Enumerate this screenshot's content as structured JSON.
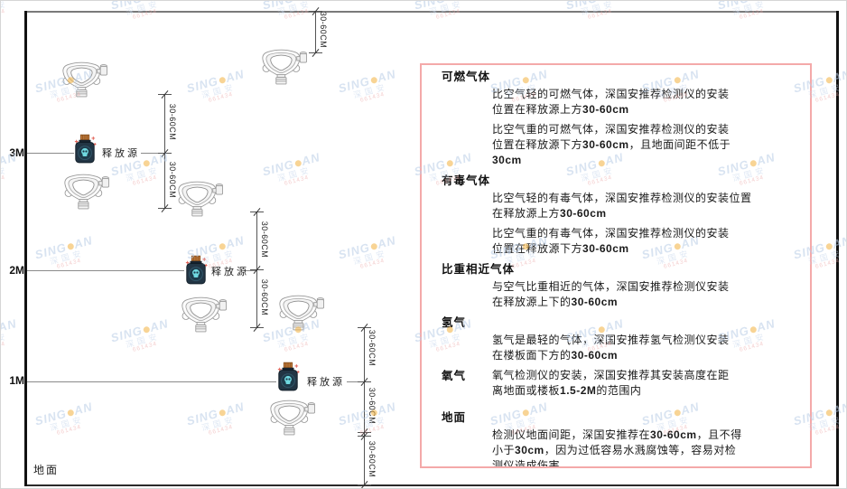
{
  "watermark": {
    "brand_prefix": "SING",
    "brand_suffix": "AN",
    "line2": "深国安",
    "line3": "661434",
    "colors": {
      "brand": "#b9cde6",
      "dot": "#f3b23f",
      "red": "#eba6a6"
    }
  },
  "diagram": {
    "heights": [
      {
        "label": "3M"
      },
      {
        "label": "2M"
      },
      {
        "label": "1M"
      }
    ],
    "ground_label": "地面",
    "release_source_label": "释放源",
    "dim_label": "30-60CM",
    "colors": {
      "bottle_body": "#223544",
      "bottle_cork": "#c07a3a",
      "skull": "#6fd8e0",
      "sparkle": "#e05a4e"
    }
  },
  "panel": {
    "border_color": "#f4a9a9",
    "sections": [
      {
        "heading": "可燃气体",
        "paragraphs": [
          "比空气轻的可燃气体，深国安推荐检测仪的安装\n位置在释放源上方30-60cm",
          "比空气重的可燃气体，深国安推荐检测仪的安装\n位置在释放源下方30-60cm，且地面间距不低于\n30cm"
        ]
      },
      {
        "heading": "有毒气体",
        "paragraphs": [
          "比空气轻的有毒气体，深国安推荐检测仪的安装位置\n在释放源上方30-60cm",
          "比空气重的有毒气体，深国安推荐检测仪的安装\n位置在释放源下方30-60cm"
        ]
      },
      {
        "heading": "比重相近气体",
        "paragraphs": [
          "与空气比重相近的气体，深国安推荐检测仪安装\n在释放源上下的30-60cm"
        ]
      },
      {
        "heading": "氢气",
        "paragraphs": [
          "氢气是最轻的气体，深国安推荐氢气检测仪安装\n在楼板面下方的30-60cm"
        ]
      },
      {
        "heading": "氧气",
        "inline": true,
        "paragraphs": [
          "氧气检测仪的安装，深国安推荐其安装高度在距\n离地面或楼板1.5-2M的范围内"
        ]
      },
      {
        "heading": "地面",
        "paragraphs": [
          "检测仪地面间距，深国安推荐在30-60cm，且不得\n小于30cm，因为过低容易水溅腐蚀等，容易对检\n测仪造成伤害"
        ]
      }
    ]
  }
}
